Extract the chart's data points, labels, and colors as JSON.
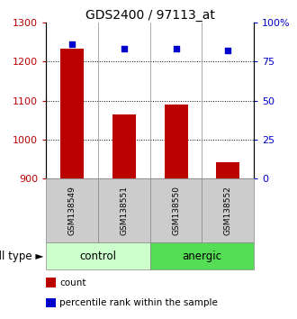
{
  "title": "GDS2400 / 97113_at",
  "samples": [
    "GSM138549",
    "GSM138551",
    "GSM138550",
    "GSM138552"
  ],
  "counts": [
    1232,
    1065,
    1090,
    942
  ],
  "percentiles": [
    86,
    83,
    83,
    82
  ],
  "ylim_left": [
    900,
    1300
  ],
  "ylim_right": [
    0,
    100
  ],
  "yticks_left": [
    900,
    1000,
    1100,
    1200,
    1300
  ],
  "yticks_right": [
    0,
    25,
    50,
    75,
    100
  ],
  "ytick_labels_right": [
    "0",
    "25",
    "50",
    "75",
    "100%"
  ],
  "bar_color": "#bb0000",
  "dot_color": "#0000cc",
  "groups": [
    {
      "label": "control",
      "indices": [
        0,
        1
      ],
      "color": "#ccffcc"
    },
    {
      "label": "anergic",
      "indices": [
        2,
        3
      ],
      "color": "#55dd55"
    }
  ],
  "group_label_text": "cell type",
  "sample_bg_color": "#cccccc",
  "legend_items": [
    {
      "color": "#bb0000",
      "label": "count"
    },
    {
      "color": "#0000cc",
      "label": "percentile rank within the sample"
    }
  ],
  "bar_width": 0.45,
  "title_fontsize": 10,
  "tick_fontsize": 8,
  "label_fontsize": 8.5
}
